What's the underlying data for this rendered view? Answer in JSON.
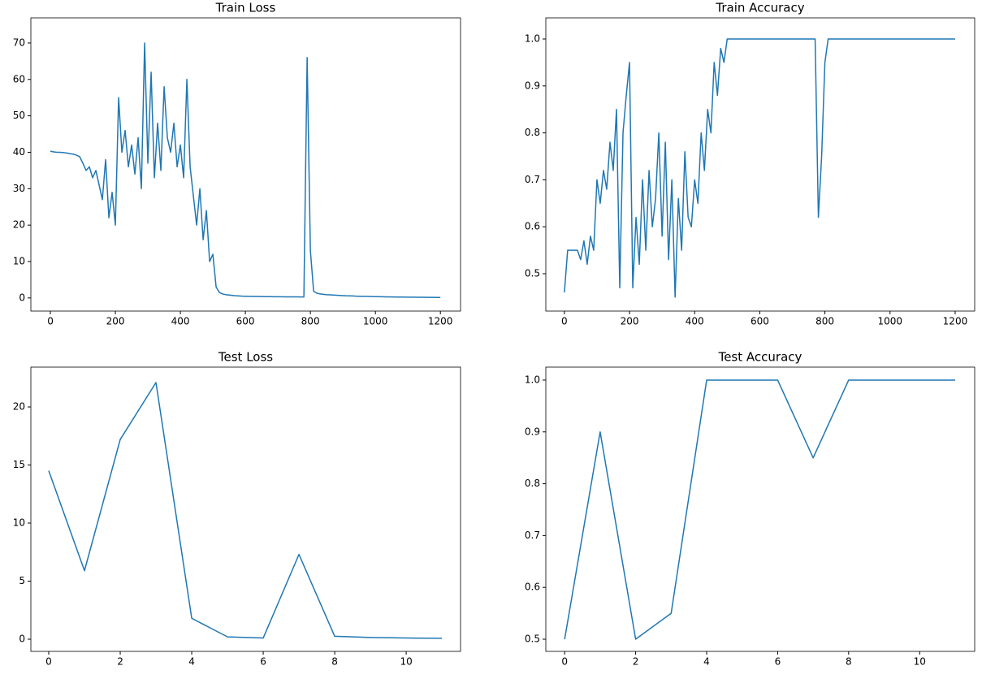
{
  "chart_data": [
    {
      "type": "line",
      "title": "Train Loss",
      "color": "#1f77b4",
      "x": [
        0,
        10,
        20,
        30,
        40,
        50,
        60,
        70,
        80,
        90,
        100,
        110,
        120,
        130,
        140,
        150,
        160,
        170,
        180,
        190,
        200,
        210,
        220,
        230,
        240,
        250,
        260,
        270,
        280,
        290,
        300,
        310,
        320,
        330,
        340,
        350,
        360,
        370,
        380,
        390,
        400,
        410,
        420,
        430,
        440,
        450,
        460,
        470,
        480,
        490,
        500,
        510,
        520,
        530,
        540,
        550,
        560,
        570,
        580,
        590,
        600,
        610,
        620,
        630,
        640,
        650,
        660,
        670,
        680,
        690,
        700,
        710,
        720,
        730,
        740,
        750,
        760,
        770,
        780,
        790,
        800,
        810,
        820,
        830,
        840,
        850,
        860,
        870,
        880,
        890,
        900,
        910,
        920,
        930,
        940,
        950,
        960,
        970,
        980,
        990,
        1000,
        1010,
        1020,
        1030,
        1040,
        1050,
        1060,
        1070,
        1080,
        1090,
        1100,
        1110,
        1120,
        1130,
        1140,
        1150,
        1160,
        1170,
        1180,
        1190,
        1200
      ],
      "values": [
        40.3,
        40.1,
        40,
        40,
        39.9,
        39.8,
        39.6,
        39.5,
        39.2,
        38.8,
        37,
        35,
        36,
        33,
        35,
        31,
        27,
        38,
        22,
        29,
        20,
        55,
        40,
        46,
        36,
        42,
        34,
        44,
        30,
        70,
        37,
        62,
        33,
        48,
        35,
        58,
        44,
        40,
        48,
        36,
        42,
        33,
        60,
        36,
        28,
        20,
        30,
        16,
        24,
        10,
        12,
        3,
        1.5,
        1.1,
        0.9,
        0.8,
        0.7,
        0.6,
        0.55,
        0.5,
        0.48,
        0.45,
        0.43,
        0.41,
        0.4,
        0.38,
        0.37,
        0.36,
        0.35,
        0.34,
        0.33,
        0.32,
        0.31,
        0.3,
        0.3,
        0.29,
        0.29,
        0.28,
        0.28,
        66,
        13,
        1.8,
        1.3,
        1.1,
        1,
        0.9,
        0.85,
        0.8,
        0.75,
        0.7,
        0.65,
        0.6,
        0.57,
        0.54,
        0.5,
        0.48,
        0.45,
        0.43,
        0.41,
        0.39,
        0.37,
        0.35,
        0.33,
        0.31,
        0.3,
        0.28,
        0.27,
        0.26,
        0.25,
        0.24,
        0.23,
        0.22,
        0.21,
        0.2,
        0.19,
        0.18,
        0.17,
        0.16,
        0.15,
        0.14,
        0.13
      ],
      "xlim": [
        -60,
        1262
      ],
      "ylim": [
        -3.6,
        76.9
      ],
      "xticks": [
        0,
        200,
        400,
        600,
        800,
        1000,
        1200
      ],
      "yticks": [
        0,
        10,
        20,
        30,
        40,
        50,
        60,
        70
      ]
    },
    {
      "type": "line",
      "title": "Train Accuracy",
      "color": "#1f77b4",
      "x": [
        0,
        10,
        20,
        30,
        40,
        50,
        60,
        70,
        80,
        90,
        100,
        110,
        120,
        130,
        140,
        150,
        160,
        170,
        180,
        190,
        200,
        210,
        220,
        230,
        240,
        250,
        260,
        270,
        280,
        290,
        300,
        310,
        320,
        330,
        340,
        350,
        360,
        370,
        380,
        390,
        400,
        410,
        420,
        430,
        440,
        450,
        460,
        470,
        480,
        490,
        500,
        510,
        520,
        530,
        540,
        550,
        560,
        570,
        580,
        590,
        600,
        610,
        620,
        630,
        640,
        650,
        660,
        670,
        680,
        690,
        700,
        710,
        720,
        730,
        740,
        750,
        760,
        770,
        780,
        790,
        800,
        810,
        820,
        830,
        840,
        850,
        860,
        870,
        880,
        890,
        900,
        910,
        920,
        930,
        940,
        950,
        960,
        970,
        980,
        990,
        1000,
        1010,
        1020,
        1030,
        1040,
        1050,
        1060,
        1070,
        1080,
        1090,
        1100,
        1110,
        1120,
        1130,
        1140,
        1150,
        1160,
        1170,
        1180,
        1190,
        1200
      ],
      "values": [
        0.46,
        0.55,
        0.55,
        0.55,
        0.55,
        0.53,
        0.57,
        0.52,
        0.58,
        0.55,
        0.7,
        0.65,
        0.72,
        0.68,
        0.78,
        0.72,
        0.85,
        0.47,
        0.8,
        0.88,
        0.95,
        0.47,
        0.62,
        0.52,
        0.7,
        0.55,
        0.72,
        0.6,
        0.66,
        0.8,
        0.58,
        0.78,
        0.53,
        0.7,
        0.45,
        0.66,
        0.55,
        0.76,
        0.62,
        0.6,
        0.7,
        0.65,
        0.8,
        0.72,
        0.85,
        0.8,
        0.95,
        0.88,
        0.98,
        0.95,
        1,
        1,
        1,
        1,
        1,
        1,
        1,
        1,
        1,
        1,
        1,
        1,
        1,
        1,
        1,
        1,
        1,
        1,
        1,
        1,
        1,
        1,
        1,
        1,
        1,
        1,
        1,
        1,
        0.62,
        0.75,
        0.95,
        1,
        1,
        1,
        1,
        1,
        1,
        1,
        1,
        1,
        1,
        1,
        1,
        1,
        1,
        1,
        1,
        1,
        1,
        1,
        1,
        1,
        1,
        1,
        1,
        1,
        1,
        1,
        1,
        1,
        1,
        1,
        1,
        1,
        1,
        1,
        1,
        1,
        1,
        1,
        1
      ],
      "xlim": [
        -57,
        1260
      ],
      "ylim": [
        0.4204,
        1.045
      ],
      "xticks": [
        0,
        200,
        400,
        600,
        800,
        1000,
        1200
      ],
      "yticks": [
        0.5,
        0.6,
        0.7,
        0.8,
        0.9,
        {
          "value": 1,
          "label": "1.0"
        }
      ]
    },
    {
      "type": "line",
      "title": "Test Loss",
      "color": "#1f77b4",
      "x": [
        0,
        1,
        2,
        3,
        4,
        5,
        6,
        7,
        8,
        9,
        10,
        11
      ],
      "values": [
        14.5,
        5.9,
        17.2,
        22.1,
        1.8,
        0.2,
        0.1,
        7.3,
        0.25,
        0.15,
        0.1,
        0.08
      ],
      "xlim": [
        -0.5,
        11.52
      ],
      "ylim": [
        -1.05,
        23.43
      ],
      "xticks": [
        0,
        2,
        4,
        6,
        8,
        10
      ],
      "yticks": [
        0,
        5,
        10,
        15,
        20
      ]
    },
    {
      "type": "line",
      "title": "Test Accuracy",
      "color": "#1f77b4",
      "x": [
        0,
        1,
        2,
        3,
        4,
        5,
        6,
        7,
        8,
        9,
        10,
        11
      ],
      "values": [
        0.5,
        0.9,
        0.5,
        0.55,
        1,
        1,
        1,
        0.85,
        1,
        1,
        1,
        1
      ],
      "xlim": [
        -0.53,
        11.55
      ],
      "ylim": [
        0.4765,
        1.025
      ],
      "xticks": [
        0,
        2,
        4,
        6,
        8,
        10
      ],
      "yticks": [
        0.5,
        0.6,
        0.7,
        0.8,
        0.9,
        {
          "value": 1,
          "label": "1.0"
        }
      ]
    }
  ]
}
